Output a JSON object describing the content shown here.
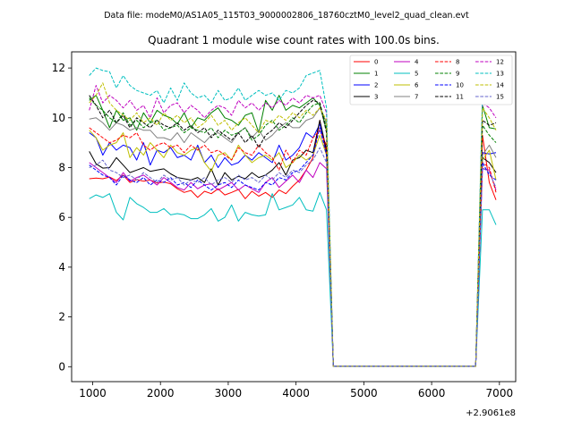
{
  "suptitle": "Data file: modeM0/AS1A05_115T03_9000002806_18760cztM0_level2_quad_clean.evt",
  "chart_data": {
    "type": "line",
    "title": "Quadrant 1 module wise count rates with 100.0s bins.",
    "xlabel": "",
    "ylabel": "",
    "x_offset_label": "+2.9061e8",
    "x_tick_labels": [
      "1000",
      "2000",
      "3000",
      "4000",
      "5000",
      "6000",
      "7000"
    ],
    "y_tick_labels": [
      "0",
      "2",
      "4",
      "6",
      "8",
      "10",
      "12"
    ],
    "xlim": [
      690,
      7240
    ],
    "ylim": [
      -0.6,
      12.65
    ],
    "x": [
      950,
      1050,
      1150,
      1250,
      1350,
      1450,
      1550,
      1650,
      1750,
      1850,
      1950,
      2050,
      2150,
      2250,
      2350,
      2450,
      2550,
      2650,
      2750,
      2850,
      2950,
      3050,
      3150,
      3250,
      3350,
      3450,
      3550,
      3650,
      3750,
      3850,
      3950,
      4050,
      4150,
      4250,
      4350,
      4450,
      4550,
      4650,
      4750,
      4850,
      4950,
      5050,
      5150,
      5250,
      5350,
      5450,
      5550,
      5650,
      5750,
      5850,
      5950,
      6050,
      6150,
      6250,
      6350,
      6450,
      6550,
      6650,
      6750,
      6850,
      6950
    ],
    "legend_position": "top-right",
    "grid": false,
    "series": [
      {
        "name": "0",
        "color": "#ff0000",
        "style": "solid",
        "values": [
          7.55,
          7.58,
          7.55,
          7.62,
          7.48,
          7.7,
          7.4,
          7.52,
          7.45,
          7.5,
          7.38,
          7.42,
          7.35,
          7.15,
          7.0,
          7.08,
          6.8,
          7.05,
          6.95,
          7.15,
          6.9,
          7.0,
          7.12,
          6.75,
          7.05,
          6.85,
          7.0,
          6.8,
          7.1,
          6.95,
          7.25,
          7.5,
          7.9,
          8.4,
          9.9,
          8.5,
          0.02,
          0.02,
          0.02,
          0.02,
          0.02,
          0.02,
          0.02,
          0.02,
          0.02,
          0.02,
          0.02,
          0.02,
          0.02,
          0.02,
          0.02,
          0.02,
          0.02,
          0.02,
          0.02,
          0.02,
          0.02,
          0.02,
          9.3,
          7.4,
          6.7
        ]
      },
      {
        "name": "1",
        "color": "#008000",
        "style": "solid",
        "values": [
          10.7,
          10.9,
          10.3,
          9.6,
          10.3,
          9.9,
          10.0,
          9.5,
          10.2,
          9.8,
          10.3,
          10.1,
          10.0,
          9.75,
          10.2,
          9.6,
          10.0,
          9.9,
          10.2,
          10.4,
          10.0,
          9.9,
          9.7,
          10.1,
          10.2,
          9.4,
          10.7,
          10.3,
          10.9,
          10.3,
          10.5,
          10.4,
          10.6,
          10.8,
          10.5,
          9.5,
          0.02,
          0.02,
          0.02,
          0.02,
          0.02,
          0.02,
          0.02,
          0.02,
          0.02,
          0.02,
          0.02,
          0.02,
          0.02,
          0.02,
          0.02,
          0.02,
          0.02,
          0.02,
          0.02,
          0.02,
          0.02,
          0.02,
          10.5,
          9.6,
          9.55
        ]
      },
      {
        "name": "2",
        "color": "#0000ff",
        "style": "solid",
        "values": [
          9.4,
          9.2,
          8.5,
          9.0,
          8.7,
          8.9,
          8.8,
          8.3,
          9.0,
          8.1,
          8.7,
          8.6,
          8.8,
          8.4,
          8.5,
          8.3,
          8.9,
          8.2,
          8.5,
          8.0,
          8.4,
          8.1,
          8.2,
          8.5,
          8.3,
          8.6,
          8.4,
          8.2,
          8.9,
          8.3,
          8.5,
          8.8,
          9.4,
          9.2,
          9.75,
          8.7,
          0.02,
          0.02,
          0.02,
          0.02,
          0.02,
          0.02,
          0.02,
          0.02,
          0.02,
          0.02,
          0.02,
          0.02,
          0.02,
          0.02,
          0.02,
          0.02,
          0.02,
          0.02,
          0.02,
          0.02,
          0.02,
          0.02,
          8.6,
          8.55,
          8.6
        ]
      },
      {
        "name": "3",
        "color": "#000000",
        "style": "solid",
        "values": [
          8.65,
          8.15,
          7.98,
          8.0,
          8.4,
          8.1,
          7.8,
          7.9,
          8.0,
          7.85,
          7.9,
          7.95,
          7.75,
          7.6,
          7.55,
          7.5,
          7.6,
          7.4,
          7.95,
          7.3,
          7.8,
          7.5,
          7.65,
          7.55,
          7.8,
          7.6,
          7.7,
          7.9,
          8.2,
          7.7,
          8.3,
          8.4,
          8.7,
          8.6,
          9.9,
          8.7,
          0.02,
          0.02,
          0.02,
          0.02,
          0.02,
          0.02,
          0.02,
          0.02,
          0.02,
          0.02,
          0.02,
          0.02,
          0.02,
          0.02,
          0.02,
          0.02,
          0.02,
          0.02,
          0.02,
          0.02,
          0.02,
          0.02,
          8.4,
          8.2,
          7.8
        ]
      },
      {
        "name": "4",
        "color": "#bf00bf",
        "style": "solid",
        "values": [
          8.2,
          8.0,
          7.8,
          7.6,
          7.4,
          7.8,
          7.45,
          7.6,
          7.7,
          7.5,
          7.3,
          7.6,
          7.4,
          7.2,
          7.1,
          7.4,
          7.15,
          7.3,
          7.35,
          7.1,
          7.25,
          7.4,
          7.1,
          7.3,
          7.15,
          7.0,
          7.4,
          7.6,
          7.2,
          7.45,
          7.7,
          7.4,
          7.9,
          7.6,
          8.2,
          7.95,
          0.02,
          0.02,
          0.02,
          0.02,
          0.02,
          0.02,
          0.02,
          0.02,
          0.02,
          0.02,
          0.02,
          0.02,
          0.02,
          0.02,
          0.02,
          0.02,
          0.02,
          0.02,
          0.02,
          0.02,
          0.02,
          0.02,
          7.95,
          7.9,
          7.1
        ]
      },
      {
        "name": "5",
        "color": "#00bfbf",
        "style": "solid",
        "values": [
          6.75,
          6.9,
          6.8,
          6.95,
          6.2,
          5.9,
          6.8,
          6.55,
          6.4,
          6.2,
          6.2,
          6.35,
          6.1,
          6.15,
          6.1,
          5.95,
          5.95,
          6.1,
          6.35,
          5.85,
          6.0,
          6.5,
          5.85,
          6.2,
          6.1,
          6.05,
          6.1,
          6.95,
          6.3,
          6.4,
          6.5,
          6.8,
          6.3,
          6.25,
          7.0,
          6.3,
          0.02,
          0.02,
          0.02,
          0.02,
          0.02,
          0.02,
          0.02,
          0.02,
          0.02,
          0.02,
          0.02,
          0.02,
          0.02,
          0.02,
          0.02,
          0.02,
          0.02,
          0.02,
          0.02,
          0.02,
          0.02,
          0.02,
          6.3,
          6.3,
          5.7
        ]
      },
      {
        "name": "6",
        "color": "#bfbf00",
        "style": "solid",
        "values": [
          9.5,
          9.2,
          8.7,
          8.9,
          9.0,
          9.4,
          8.4,
          8.8,
          8.5,
          9.0,
          8.7,
          8.4,
          8.9,
          8.6,
          8.5,
          8.7,
          8.8,
          8.2,
          7.85,
          8.5,
          8.6,
          8.3,
          8.9,
          8.5,
          8.2,
          8.4,
          8.5,
          8.3,
          8.6,
          8.0,
          8.2,
          8.5,
          8.3,
          8.5,
          9.3,
          8.5,
          0.02,
          0.02,
          0.02,
          0.02,
          0.02,
          0.02,
          0.02,
          0.02,
          0.02,
          0.02,
          0.02,
          0.02,
          0.02,
          0.02,
          0.02,
          0.02,
          0.02,
          0.02,
          0.02,
          0.02,
          0.02,
          0.02,
          8.3,
          8.7,
          7.5
        ]
      },
      {
        "name": "7",
        "color": "#808080",
        "style": "solid",
        "values": [
          9.95,
          10.0,
          9.8,
          9.5,
          9.8,
          9.7,
          9.5,
          9.6,
          9.5,
          9.5,
          9.2,
          9.2,
          9.1,
          9.4,
          9.0,
          9.4,
          9.2,
          9.0,
          9.3,
          9.4,
          9.2,
          9.0,
          9.4,
          9.6,
          9.2,
          9.5,
          9.1,
          9.3,
          9.6,
          9.8,
          9.6,
          9.6,
          9.9,
          10.0,
          10.4,
          9.8,
          0.02,
          0.02,
          0.02,
          0.02,
          0.02,
          0.02,
          0.02,
          0.02,
          0.02,
          0.02,
          0.02,
          0.02,
          0.02,
          0.02,
          0.02,
          0.02,
          0.02,
          0.02,
          0.02,
          0.02,
          0.02,
          0.02,
          8.5,
          8.9,
          8.4
        ]
      },
      {
        "name": "8",
        "color": "#ff0000",
        "style": "dashed",
        "values": [
          9.6,
          9.4,
          9.2,
          9.0,
          9.1,
          9.3,
          9.2,
          9.4,
          8.9,
          8.7,
          8.9,
          9.0,
          8.8,
          8.9,
          8.6,
          8.9,
          8.7,
          8.9,
          8.6,
          8.7,
          8.5,
          8.3,
          8.8,
          8.6,
          8.5,
          8.9,
          8.6,
          8.4,
          7.9,
          8.7,
          8.2,
          8.7,
          8.5,
          9.2,
          9.5,
          8.9,
          0.02,
          0.02,
          0.02,
          0.02,
          0.02,
          0.02,
          0.02,
          0.02,
          0.02,
          0.02,
          0.02,
          0.02,
          0.02,
          0.02,
          0.02,
          0.02,
          0.02,
          0.02,
          0.02,
          0.02,
          0.02,
          0.02,
          8.2,
          8.0,
          7.0
        ]
      },
      {
        "name": "9",
        "color": "#008000",
        "style": "dashed",
        "values": [
          10.8,
          10.5,
          10.3,
          10.0,
          9.8,
          10.2,
          9.7,
          9.9,
          9.6,
          9.8,
          9.9,
          9.5,
          9.6,
          9.7,
          9.4,
          9.6,
          9.5,
          9.4,
          9.6,
          9.2,
          9.5,
          9.3,
          9.4,
          9.6,
          9.1,
          9.3,
          9.7,
          9.9,
          9.5,
          9.7,
          10.0,
          9.8,
          10.2,
          10.5,
          10.6,
          9.6,
          0.02,
          0.02,
          0.02,
          0.02,
          0.02,
          0.02,
          0.02,
          0.02,
          0.02,
          0.02,
          0.02,
          0.02,
          0.02,
          0.02,
          0.02,
          0.02,
          0.02,
          0.02,
          0.02,
          0.02,
          0.02,
          0.02,
          9.7,
          9.3,
          9.0
        ]
      },
      {
        "name": "10",
        "color": "#0000ff",
        "style": "dashed",
        "values": [
          8.1,
          7.9,
          7.7,
          7.6,
          7.3,
          7.7,
          7.5,
          7.4,
          7.6,
          7.3,
          7.5,
          7.4,
          7.6,
          7.3,
          7.4,
          7.2,
          7.5,
          7.3,
          7.1,
          7.3,
          7.4,
          7.2,
          7.5,
          7.3,
          7.2,
          7.1,
          7.4,
          7.3,
          7.6,
          7.5,
          7.8,
          7.9,
          8.2,
          8.5,
          9.6,
          8.5,
          0.02,
          0.02,
          0.02,
          0.02,
          0.02,
          0.02,
          0.02,
          0.02,
          0.02,
          0.02,
          0.02,
          0.02,
          0.02,
          0.02,
          0.02,
          0.02,
          0.02,
          0.02,
          0.02,
          0.02,
          0.02,
          0.02,
          8.2,
          7.7,
          7.5
        ]
      },
      {
        "name": "11",
        "color": "#000000",
        "style": "dashed",
        "values": [
          10.9,
          10.5,
          10.0,
          10.3,
          9.8,
          10.1,
          9.6,
          10.0,
          9.8,
          9.6,
          9.9,
          9.7,
          9.6,
          9.8,
          9.5,
          9.7,
          9.4,
          9.6,
          9.2,
          9.5,
          9.3,
          9.1,
          9.4,
          9.0,
          9.3,
          8.8,
          9.3,
          9.5,
          9.8,
          9.6,
          9.9,
          10.2,
          10.5,
          10.7,
          10.6,
          9.4,
          0.02,
          0.02,
          0.02,
          0.02,
          0.02,
          0.02,
          0.02,
          0.02,
          0.02,
          0.02,
          0.02,
          0.02,
          0.02,
          0.02,
          0.02,
          0.02,
          0.02,
          0.02,
          0.02,
          0.02,
          0.02,
          0.02,
          9.9,
          9.7,
          9.8
        ]
      },
      {
        "name": "12",
        "color": "#bf00bf",
        "style": "dashed",
        "values": [
          10.3,
          11.3,
          10.6,
          10.9,
          10.7,
          10.4,
          10.7,
          10.3,
          10.5,
          10.0,
          10.8,
          10.2,
          10.5,
          10.6,
          10.2,
          10.5,
          10.3,
          10.0,
          10.3,
          10.5,
          10.4,
          10.1,
          10.7,
          10.4,
          10.6,
          10.3,
          10.6,
          10.4,
          10.7,
          10.5,
          10.8,
          10.6,
          10.9,
          10.8,
          10.9,
          10.2,
          0.02,
          0.02,
          0.02,
          0.02,
          0.02,
          0.02,
          0.02,
          0.02,
          0.02,
          0.02,
          0.02,
          0.02,
          0.02,
          0.02,
          0.02,
          0.02,
          0.02,
          0.02,
          0.02,
          0.02,
          0.02,
          0.02,
          10.6,
          10.4,
          10.0
        ]
      },
      {
        "name": "13",
        "color": "#00bfbf",
        "style": "dashed",
        "values": [
          11.7,
          12.0,
          11.9,
          11.85,
          11.2,
          11.7,
          11.3,
          11.1,
          11.0,
          10.9,
          11.1,
          10.6,
          11.2,
          10.7,
          11.4,
          11.0,
          10.8,
          10.9,
          10.6,
          11.1,
          10.7,
          10.8,
          11.2,
          10.7,
          10.9,
          11.1,
          10.9,
          11.0,
          10.7,
          11.1,
          11.0,
          11.2,
          11.7,
          11.8,
          11.9,
          10.4,
          0.02,
          0.02,
          0.02,
          0.02,
          0.02,
          0.02,
          0.02,
          0.02,
          0.02,
          0.02,
          0.02,
          0.02,
          0.02,
          0.02,
          0.02,
          0.02,
          0.02,
          0.02,
          0.02,
          0.02,
          0.02,
          0.02,
          11.0,
          11.1,
          11.1
        ]
      },
      {
        "name": "14",
        "color": "#bfbf00",
        "style": "dashed",
        "values": [
          10.6,
          10.9,
          11.4,
          10.6,
          10.3,
          10.1,
          9.9,
          10.2,
          9.8,
          10.0,
          9.7,
          10.2,
          9.9,
          10.1,
          9.8,
          10.0,
          9.6,
          9.8,
          10.1,
          9.7,
          9.9,
          9.5,
          9.8,
          10.0,
          9.7,
          9.4,
          9.9,
          9.8,
          10.1,
          9.9,
          10.2,
          10.0,
          10.3,
          10.1,
          10.4,
          9.9,
          0.02,
          0.02,
          0.02,
          0.02,
          0.02,
          0.02,
          0.02,
          0.02,
          0.02,
          0.02,
          0.02,
          0.02,
          0.02,
          0.02,
          0.02,
          0.02,
          0.02,
          0.02,
          0.02,
          0.02,
          0.02,
          0.02,
          10.4,
          10.0,
          9.5
        ]
      },
      {
        "name": "15",
        "color": "#6666cc",
        "style": "dashed",
        "values": [
          8.0,
          8.1,
          8.3,
          7.9,
          7.8,
          7.6,
          7.7,
          7.5,
          7.8,
          7.6,
          7.4,
          7.7,
          7.5,
          7.6,
          7.3,
          7.5,
          7.4,
          7.6,
          7.3,
          7.5,
          7.6,
          7.4,
          7.7,
          7.5,
          7.6,
          7.4,
          7.7,
          7.5,
          7.8,
          7.6,
          7.9,
          7.8,
          8.1,
          8.3,
          8.8,
          8.2,
          0.02,
          0.02,
          0.02,
          0.02,
          0.02,
          0.02,
          0.02,
          0.02,
          0.02,
          0.02,
          0.02,
          0.02,
          0.02,
          0.02,
          0.02,
          0.02,
          0.02,
          0.02,
          0.02,
          0.02,
          0.02,
          0.02,
          8.0,
          7.8,
          7.2
        ]
      }
    ]
  }
}
